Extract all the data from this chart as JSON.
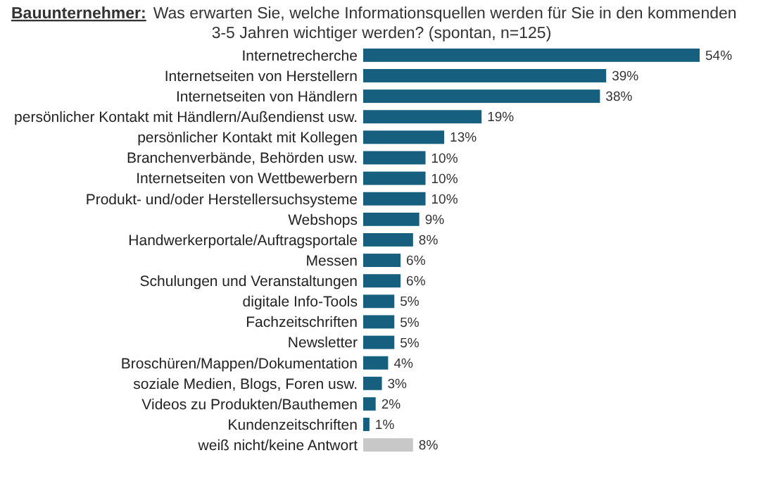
{
  "chart_data": {
    "type": "bar",
    "orientation": "horizontal",
    "title": "Bauunternehmer:",
    "subtitle": "Was erwarten Sie, welche Informationsquellen werden für Sie in den kommenden 3-5 Jahren wichtiger werden? (spontan, n=125)",
    "categories": [
      "Internetrecherche",
      "Internetseiten von Herstellern",
      "Internetseiten von Händlern",
      "persönlicher Kontakt mit Händlern/Außendienst usw.",
      "persönlicher Kontakt mit Kollegen",
      "Branchenverbände, Behörden usw.",
      "Internetseiten von Wettbewerbern",
      "Produkt- und/oder Herstellersuchsysteme",
      "Webshops",
      "Handwerkerportale/Auftragsportale",
      "Messen",
      "Schulungen und Veranstaltungen",
      "digitale Info-Tools",
      "Fachzeitschriften",
      "Newsletter",
      "Broschüren/Mappen/Dokumentation",
      "soziale Medien, Blogs, Foren usw.",
      "Videos zu Produkten/Bauthemen",
      "Kundenzeitschriften",
      "weiß nicht/keine Antwort"
    ],
    "values": [
      54,
      39,
      38,
      19,
      13,
      10,
      10,
      10,
      9,
      8,
      6,
      6,
      5,
      5,
      5,
      4,
      3,
      2,
      1,
      8
    ],
    "colors": [
      "#165f7e",
      "#165f7e",
      "#165f7e",
      "#165f7e",
      "#165f7e",
      "#165f7e",
      "#165f7e",
      "#165f7e",
      "#165f7e",
      "#165f7e",
      "#165f7e",
      "#165f7e",
      "#165f7e",
      "#165f7e",
      "#165f7e",
      "#165f7e",
      "#165f7e",
      "#165f7e",
      "#165f7e",
      "#c8c8c8"
    ],
    "value_labels": [
      "54%",
      "39%",
      "38%",
      "19%",
      "13%",
      "10%",
      "10%",
      "10%",
      "9%",
      "8%",
      "6%",
      "6%",
      "5%",
      "5%",
      "5%",
      "4%",
      "3%",
      "2%",
      "1%",
      "8%"
    ]
  }
}
